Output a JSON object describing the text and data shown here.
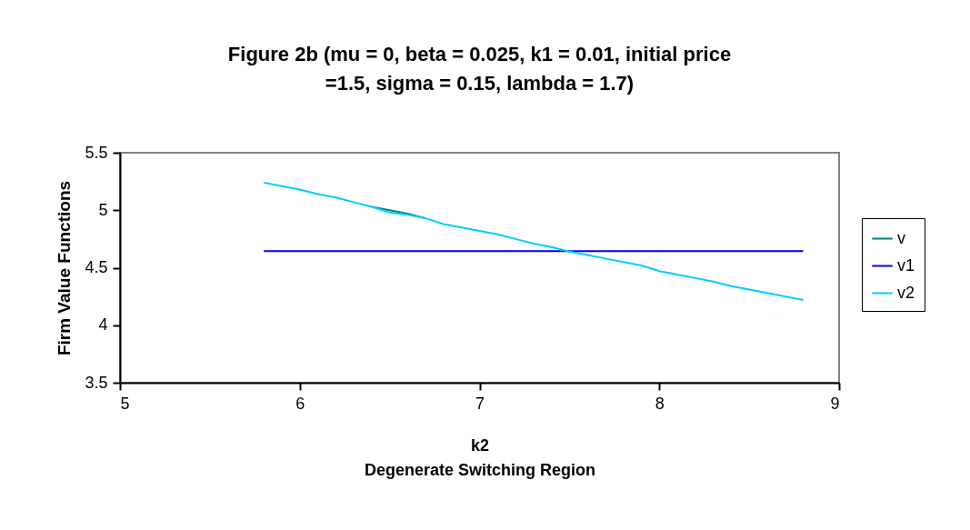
{
  "chart_data": {
    "type": "line",
    "title": [
      "Figure 2b (mu = 0, beta = 0.025, k1 = 0.01, initial price",
      "=1.5, sigma = 0.15, lambda = 1.7)"
    ],
    "xlabel": "k2\nDegenerate Switching Region",
    "ylabel": "Firm Value Functions",
    "x": [
      5.8,
      5.9,
      6.0,
      6.1,
      6.2,
      6.3,
      6.4,
      6.5,
      6.6,
      6.7,
      6.8,
      6.9,
      7.0,
      7.1,
      7.2,
      7.3,
      7.4,
      7.5,
      7.6,
      7.7,
      7.8,
      7.9,
      8.0,
      8.1,
      8.2,
      8.3,
      8.4,
      8.5,
      8.6,
      8.7,
      8.8
    ],
    "series": [
      {
        "name": "v",
        "color": "#008080",
        "values": [
          null,
          null,
          null,
          null,
          null,
          null,
          5.03,
          5.0,
          4.97,
          4.93,
          null,
          null,
          null,
          null,
          null,
          null,
          null,
          null,
          null,
          null,
          null,
          null,
          null,
          null,
          null,
          null,
          null,
          null,
          null,
          null,
          null
        ]
      },
      {
        "name": "v1",
        "color": "#0000ff",
        "values": [
          4.645,
          4.645,
          4.645,
          4.645,
          4.645,
          4.645,
          4.645,
          4.645,
          4.645,
          4.645,
          4.645,
          4.645,
          4.645,
          4.645,
          4.645,
          4.645,
          4.645,
          4.645,
          4.645,
          4.645,
          4.645,
          4.645,
          4.645,
          4.645,
          4.645,
          4.645,
          4.645,
          4.645,
          4.645,
          4.645,
          4.645
        ]
      },
      {
        "name": "v2",
        "color": "#00ccff",
        "values": [
          5.24,
          5.21,
          5.18,
          5.14,
          5.11,
          5.07,
          5.03,
          4.98,
          4.96,
          4.93,
          4.88,
          4.85,
          4.82,
          4.79,
          4.75,
          4.71,
          4.68,
          4.64,
          4.61,
          4.58,
          4.55,
          4.52,
          4.47,
          4.44,
          4.41,
          4.38,
          4.34,
          4.31,
          4.28,
          4.25,
          4.22
        ]
      }
    ],
    "xlim": [
      5,
      9
    ],
    "xticks": [
      5,
      6,
      7,
      8,
      9
    ],
    "ylim": [
      3.5,
      5.5
    ],
    "yticks": [
      3.5,
      4,
      4.5,
      5,
      5.5
    ],
    "legend": "right",
    "grid": false,
    "marker": "none",
    "line_style": "solid"
  }
}
